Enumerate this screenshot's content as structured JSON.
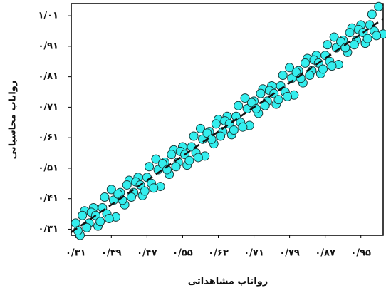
{
  "chart_data": {
    "type": "scatter",
    "x_label": "رواناب مشاهداتی",
    "y_label": "رواناب محاسباتی",
    "xlim": [
      0.3,
      1.0
    ],
    "ylim": [
      0.29,
      1.05
    ],
    "xticks": [
      {
        "value": 0.31,
        "label": "۰/۳۱"
      },
      {
        "value": 0.39,
        "label": "۰/۳۹"
      },
      {
        "value": 0.47,
        "label": "۰/۴۷"
      },
      {
        "value": 0.55,
        "label": "۰/۵۵"
      },
      {
        "value": 0.63,
        "label": "۰/۶۳"
      },
      {
        "value": 0.71,
        "label": "۰/۷۱"
      },
      {
        "value": 0.79,
        "label": "۰/۷۹"
      },
      {
        "value": 0.87,
        "label": "۰/۸۷"
      },
      {
        "value": 0.95,
        "label": "۰/۹۵"
      }
    ],
    "yticks": [
      {
        "value": 0.31,
        "label": "۰/۳۱"
      },
      {
        "value": 0.41,
        "label": "۰/۴۱"
      },
      {
        "value": 0.51,
        "label": "۰/۵۱"
      },
      {
        "value": 0.61,
        "label": "۰/۶۱"
      },
      {
        "value": 0.71,
        "label": "۰/۷۱"
      },
      {
        "value": 0.81,
        "label": "۰/۸۱"
      },
      {
        "value": 0.91,
        "label": "۰/۹۱"
      },
      {
        "value": 1.01,
        "label": "۱/۰۱"
      }
    ],
    "series": [
      {
        "color": "#33eeee",
        "x": [
          0.31,
          0.32,
          0.33,
          0.34,
          0.35,
          0.36,
          0.37,
          0.38,
          0.39,
          0.4,
          0.41,
          0.42,
          0.43,
          0.44,
          0.45,
          0.46,
          0.47,
          0.48,
          0.49,
          0.5,
          0.51,
          0.52,
          0.53,
          0.54,
          0.55,
          0.56,
          0.57,
          0.58,
          0.59,
          0.6,
          0.61,
          0.62,
          0.63,
          0.64,
          0.65,
          0.66,
          0.67,
          0.68,
          0.69,
          0.7,
          0.71,
          0.72,
          0.73,
          0.74,
          0.75,
          0.76,
          0.77,
          0.78,
          0.79,
          0.8,
          0.81,
          0.82,
          0.83,
          0.84,
          0.85,
          0.86,
          0.87,
          0.88,
          0.89,
          0.9,
          0.91,
          0.92,
          0.93,
          0.94,
          0.95,
          0.96,
          0.97,
          0.98,
          0.99,
          1.0,
          0.315,
          0.325,
          0.335,
          0.345,
          0.355,
          0.365,
          0.375,
          0.385,
          0.395,
          0.405,
          0.415,
          0.425,
          0.435,
          0.445,
          0.455,
          0.465,
          0.475,
          0.485,
          0.495,
          0.505,
          0.515,
          0.525,
          0.535,
          0.545,
          0.555,
          0.565,
          0.575,
          0.585,
          0.595,
          0.605,
          0.615,
          0.625,
          0.635,
          0.645,
          0.655,
          0.665,
          0.675,
          0.685,
          0.695,
          0.705,
          0.715,
          0.725,
          0.735,
          0.745,
          0.755,
          0.765,
          0.775,
          0.785,
          0.795,
          0.805,
          0.815,
          0.825,
          0.835,
          0.845,
          0.855,
          0.865,
          0.875,
          0.885,
          0.895,
          0.905,
          0.915,
          0.925,
          0.935,
          0.945,
          0.955,
          0.965,
          0.975,
          0.985
        ],
        "y": [
          0.33,
          0.29,
          0.37,
          0.33,
          0.38,
          0.32,
          0.38,
          0.36,
          0.44,
          0.35,
          0.43,
          0.39,
          0.47,
          0.43,
          0.48,
          0.42,
          0.48,
          0.46,
          0.54,
          0.45,
          0.53,
          0.49,
          0.57,
          0.53,
          0.58,
          0.52,
          0.58,
          0.56,
          0.64,
          0.55,
          0.63,
          0.59,
          0.67,
          0.63,
          0.68,
          0.62,
          0.68,
          0.66,
          0.74,
          0.65,
          0.73,
          0.69,
          0.77,
          0.73,
          0.78,
          0.72,
          0.78,
          0.76,
          0.84,
          0.75,
          0.83,
          0.79,
          0.87,
          0.83,
          0.88,
          0.82,
          0.88,
          0.86,
          0.94,
          0.85,
          0.93,
          0.89,
          0.97,
          0.93,
          0.98,
          0.92,
          0.98,
          0.96,
          1.04,
          0.95,
          0.305,
          0.355,
          0.315,
          0.365,
          0.355,
          0.335,
          0.415,
          0.345,
          0.405,
          0.425,
          0.405,
          0.455,
          0.415,
          0.465,
          0.455,
          0.435,
          0.515,
          0.445,
          0.505,
          0.525,
          0.505,
          0.555,
          0.515,
          0.565,
          0.555,
          0.535,
          0.615,
          0.545,
          0.605,
          0.625,
          0.605,
          0.655,
          0.615,
          0.665,
          0.655,
          0.635,
          0.715,
          0.645,
          0.705,
          0.725,
          0.705,
          0.755,
          0.715,
          0.765,
          0.755,
          0.735,
          0.815,
          0.745,
          0.805,
          0.825,
          0.805,
          0.855,
          0.815,
          0.865,
          0.855,
          0.835,
          0.915,
          0.845,
          0.905,
          0.925,
          0.905,
          0.955,
          0.915,
          0.965,
          0.955,
          0.935,
          1.015,
          0.945
        ]
      }
    ]
  }
}
